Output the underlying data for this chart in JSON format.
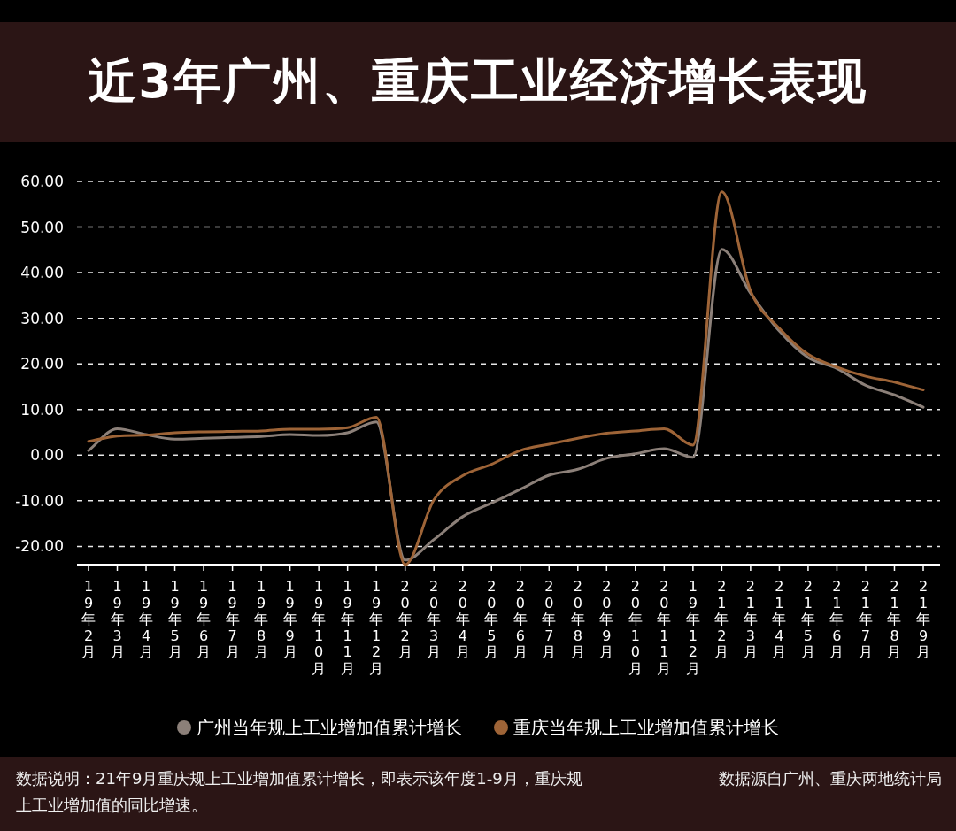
{
  "chart_data": {
    "type": "line",
    "title": "近3年广州、重庆工业经济增长表现",
    "categories": [
      "19年2月",
      "19年3月",
      "19年4月",
      "19年5月",
      "19年6月",
      "19年7月",
      "19年8月",
      "19年9月",
      "19年10月",
      "19年11月",
      "19年12月",
      "20年2月",
      "20年3月",
      "20年4月",
      "20年5月",
      "20年6月",
      "20年7月",
      "20年8月",
      "20年9月",
      "20年10月",
      "20年11月",
      "19年12月",
      "21年2月",
      "21年3月",
      "21年4月",
      "21年5月",
      "21年6月",
      "21年7月",
      "21年8月",
      "21年9月"
    ],
    "series": [
      {
        "name": "广州当年规上工业增加值累计增长",
        "color": "#8c8079",
        "values": [
          1.0,
          5.8,
          4.5,
          3.5,
          3.7,
          3.9,
          4.1,
          4.5,
          4.3,
          4.9,
          7.3,
          -23.0,
          -18.5,
          -13.5,
          -10.5,
          -7.5,
          -4.4,
          -3.1,
          -0.7,
          0.3,
          1.4,
          -0.5,
          45.1,
          35.5,
          27.2,
          21.4,
          19.0,
          15.3,
          13.2,
          10.5
        ]
      },
      {
        "name": "重庆当年规上工业增加值累计增长",
        "color": "#9e6437",
        "values": [
          3.0,
          4.2,
          4.4,
          4.9,
          5.1,
          5.2,
          5.3,
          5.7,
          5.7,
          6.0,
          8.3,
          -24.0,
          -9.8,
          -4.5,
          -2.0,
          1.0,
          2.4,
          3.7,
          4.8,
          5.3,
          5.8,
          2.2,
          57.7,
          36.0,
          27.8,
          22.1,
          19.3,
          17.3,
          16.0,
          14.3
        ]
      }
    ],
    "ylim": [
      -24,
      60
    ],
    "yticks": [
      {
        "value": -20,
        "label": "-20.00"
      },
      {
        "value": -10,
        "label": "-10.00"
      },
      {
        "value": 0,
        "label": "0.00"
      },
      {
        "value": 10,
        "label": "10.00"
      },
      {
        "value": 20,
        "label": "20.00"
      },
      {
        "value": 30,
        "label": "30.00"
      },
      {
        "value": 40,
        "label": "40.00"
      },
      {
        "value": 50,
        "label": "50.00"
      },
      {
        "value": 60,
        "label": "60.00"
      }
    ],
    "grid": "y",
    "legend": "bottom",
    "annotations": [
      "数据说明：21年9月重庆规上工业增加值累计增长，即表示该年度1-9月，重庆规上工业增加值的同比增速。",
      "数据源自广州、重庆两地统计局"
    ]
  }
}
